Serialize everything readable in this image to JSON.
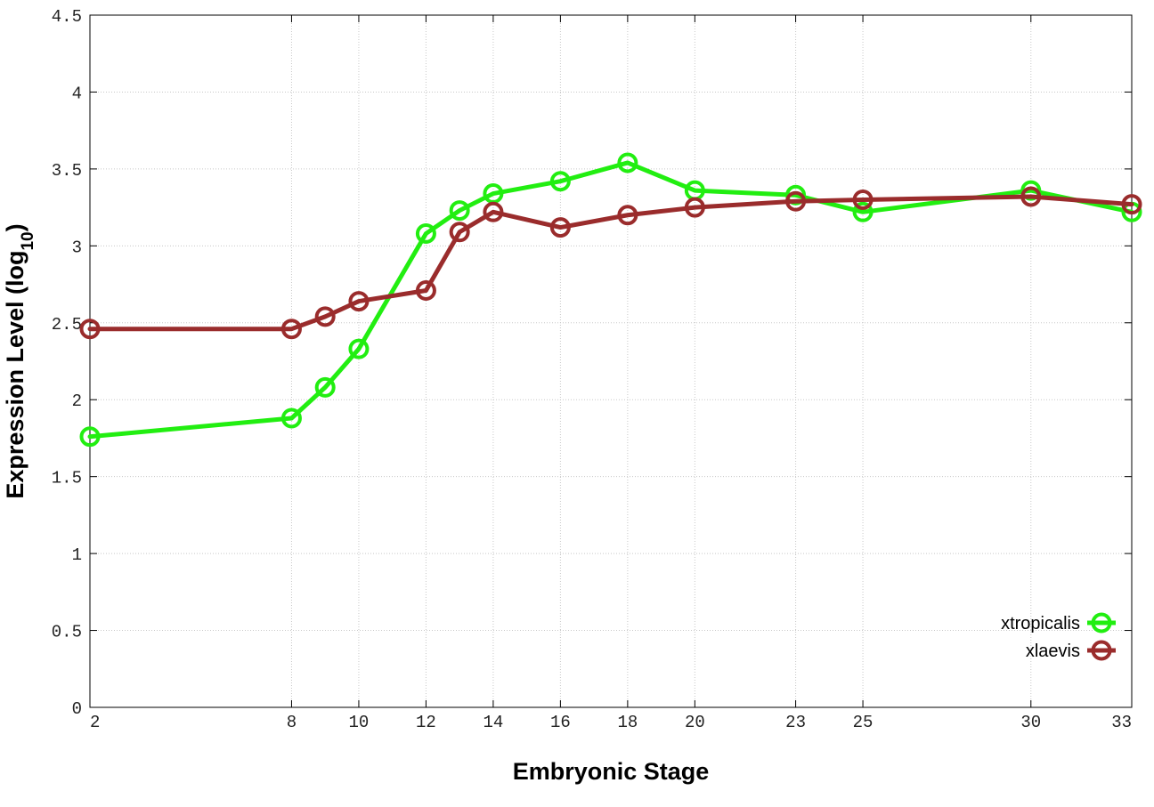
{
  "chart_data": {
    "type": "line",
    "title": "",
    "xlabel": "Embryonic Stage",
    "ylabel_main": "Expression Level (log",
    "ylabel_sub": "10",
    "ylabel_close": ")",
    "ylim": [
      0,
      4.5
    ],
    "xlim": [
      2,
      33
    ],
    "x_ticks": [
      2,
      8,
      10,
      12,
      14,
      16,
      18,
      20,
      23,
      25,
      30,
      33
    ],
    "y_ticks": [
      0,
      0.5,
      1,
      1.5,
      2,
      2.5,
      3,
      3.5,
      4,
      4.5
    ],
    "grid": true,
    "legend_position": "bottom-right",
    "series": [
      {
        "name": "xtropicalis",
        "color": "#22ee11",
        "x": [
          2,
          8,
          9,
          10,
          12,
          13,
          14,
          16,
          18,
          20,
          23,
          25,
          30,
          33
        ],
        "values": [
          1.76,
          1.88,
          2.08,
          2.33,
          3.08,
          3.23,
          3.34,
          3.42,
          3.54,
          3.36,
          3.33,
          3.22,
          3.36,
          3.22
        ]
      },
      {
        "name": "xlaevis",
        "color": "#9a2c2c",
        "x": [
          2,
          8,
          9,
          10,
          12,
          13,
          14,
          16,
          18,
          20,
          23,
          25,
          30,
          33
        ],
        "values": [
          2.46,
          2.46,
          2.54,
          2.64,
          2.71,
          3.09,
          3.22,
          3.12,
          3.2,
          3.25,
          3.29,
          3.3,
          3.32,
          3.27
        ]
      }
    ]
  }
}
